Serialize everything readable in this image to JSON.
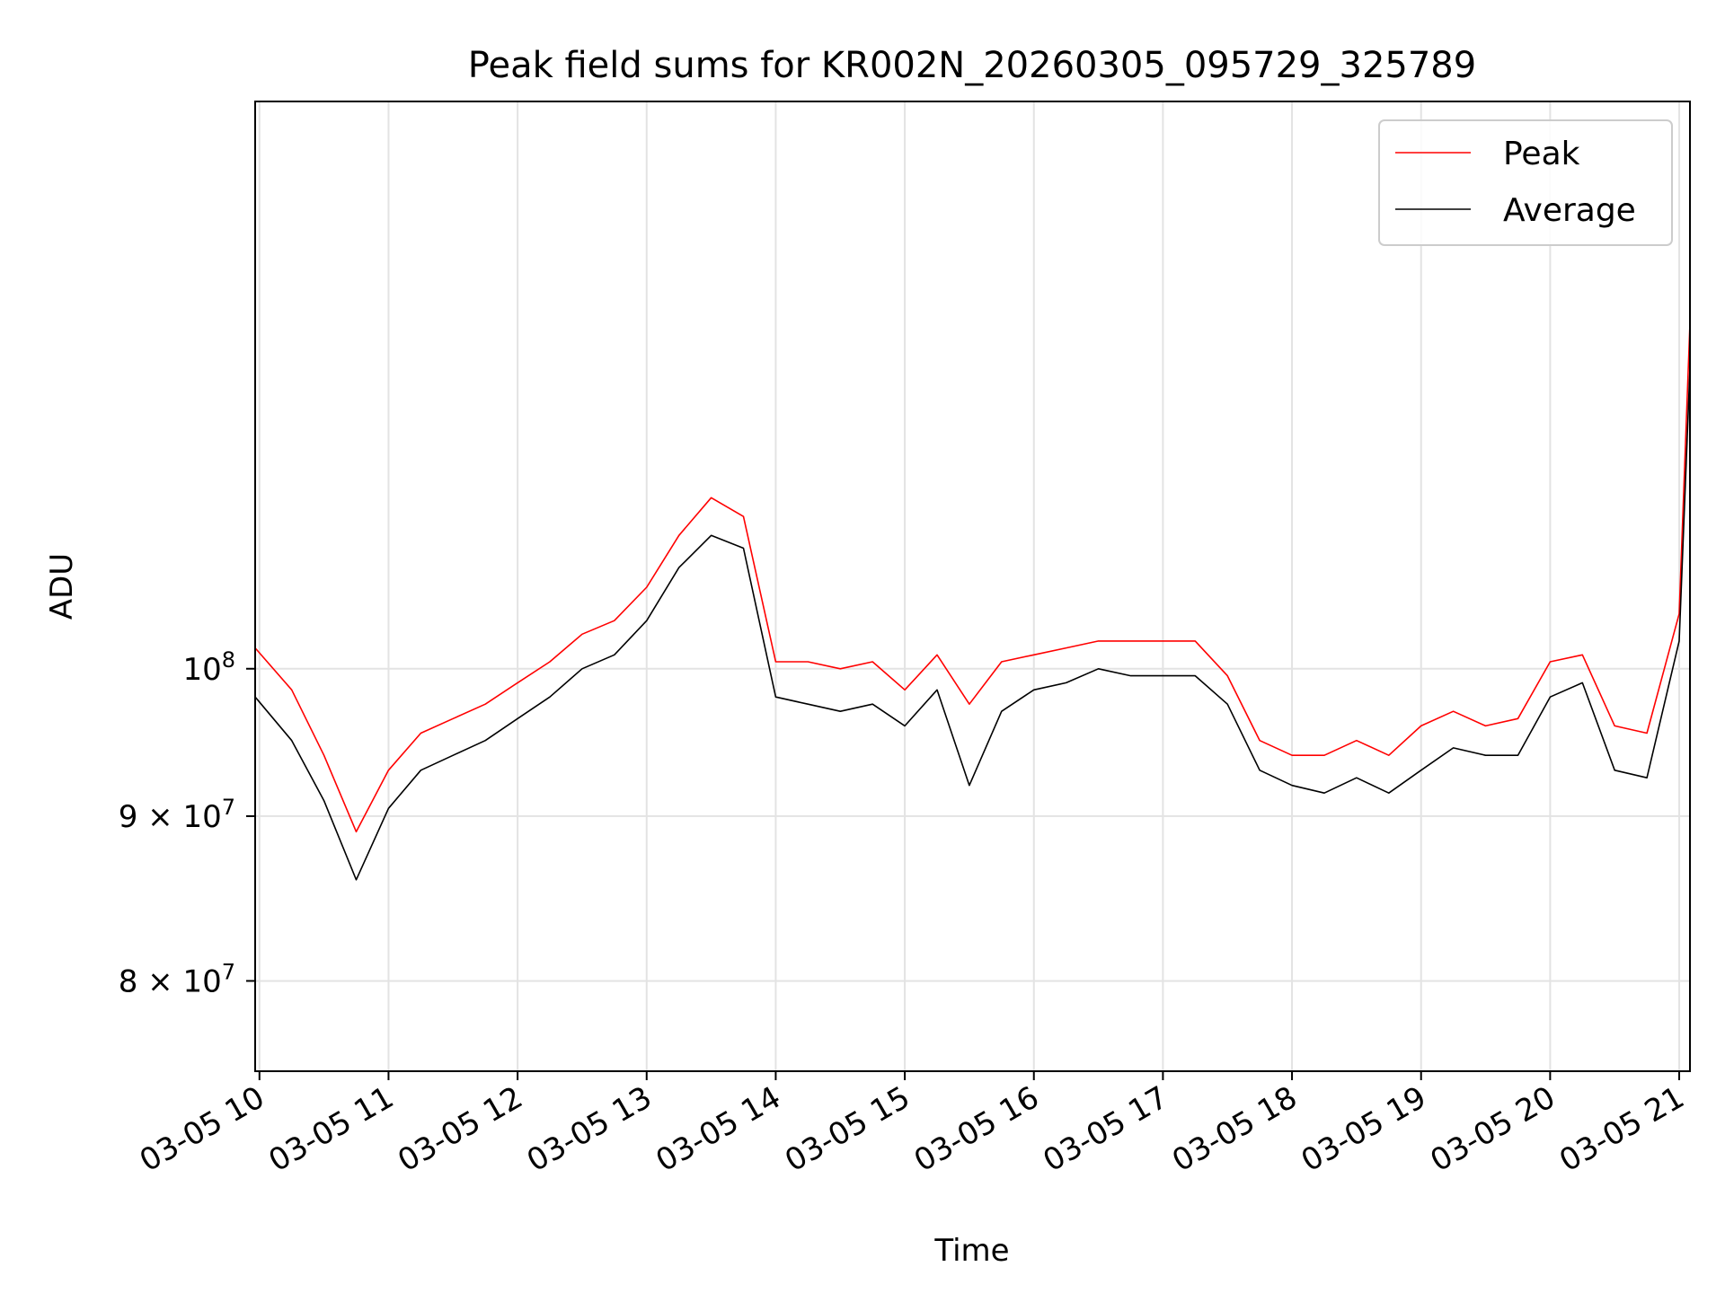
{
  "chart_data": {
    "type": "line",
    "title": "Peak field sums for KR002N_20260305_095729_325789",
    "xlabel": "Time",
    "ylabel": "ADU",
    "y_scale": "log",
    "ylim": [
      75000000,
      150000000
    ],
    "xlim": [
      "2026-03-05 09:58",
      "2026-03-05 21:05"
    ],
    "grid": true,
    "legend_position": "top-right",
    "x_tick_labels": [
      "03-05 10",
      "03-05 11",
      "03-05 12",
      "03-05 13",
      "03-05 14",
      "03-05 15",
      "03-05 16",
      "03-05 17",
      "03-05 18",
      "03-05 19",
      "03-05 20",
      "03-05 21"
    ],
    "y_ticks": [
      {
        "value": 80000000,
        "mantissa": "8",
        "exponent": "7"
      },
      {
        "value": 90000000,
        "mantissa": "9",
        "exponent": "7"
      },
      {
        "value": 100000000,
        "mantissa": "",
        "exponent": "8"
      }
    ],
    "x": [
      "2026-03-05 09:58",
      "2026-03-05 10:15",
      "2026-03-05 10:30",
      "2026-03-05 10:45",
      "2026-03-05 11:00",
      "2026-03-05 11:15",
      "2026-03-05 11:30",
      "2026-03-05 11:45",
      "2026-03-05 12:00",
      "2026-03-05 12:15",
      "2026-03-05 12:30",
      "2026-03-05 12:45",
      "2026-03-05 13:00",
      "2026-03-05 13:15",
      "2026-03-05 13:30",
      "2026-03-05 13:45",
      "2026-03-05 14:00",
      "2026-03-05 14:15",
      "2026-03-05 14:30",
      "2026-03-05 14:45",
      "2026-03-05 15:00",
      "2026-03-05 15:15",
      "2026-03-05 15:30",
      "2026-03-05 15:45",
      "2026-03-05 16:00",
      "2026-03-05 16:15",
      "2026-03-05 16:30",
      "2026-03-05 16:45",
      "2026-03-05 17:00",
      "2026-03-05 17:15",
      "2026-03-05 17:30",
      "2026-03-05 17:45",
      "2026-03-05 18:00",
      "2026-03-05 18:15",
      "2026-03-05 18:30",
      "2026-03-05 18:45",
      "2026-03-05 19:00",
      "2026-03-05 19:15",
      "2026-03-05 19:30",
      "2026-03-05 19:45",
      "2026-03-05 20:00",
      "2026-03-05 20:15",
      "2026-03-05 20:30",
      "2026-03-05 20:45",
      "2026-03-05 21:00",
      "2026-03-05 21:05"
    ],
    "series": [
      {
        "name": "Peak",
        "color": "#ff0000",
        "values": [
          101500000,
          98500000,
          94000000,
          89000000,
          93000000,
          95500000,
          96500000,
          97500000,
          99000000,
          100500000,
          102500000,
          103500000,
          106000000,
          110000000,
          113000000,
          111500000,
          100500000,
          100500000,
          100000000,
          100500000,
          98500000,
          101000000,
          97500000,
          100500000,
          101000000,
          101500000,
          102000000,
          102000000,
          102000000,
          102000000,
          99500000,
          95000000,
          94000000,
          94000000,
          95000000,
          94000000,
          96000000,
          97000000,
          96000000,
          96500000,
          100500000,
          101000000,
          96000000,
          95500000,
          104000000,
          128000000
        ]
      },
      {
        "name": "Average",
        "color": "#000000",
        "values": [
          98000000,
          95000000,
          91000000,
          86000000,
          90500000,
          93000000,
          94000000,
          95000000,
          96500000,
          98000000,
          100000000,
          101000000,
          103500000,
          107500000,
          110000000,
          109000000,
          98000000,
          97500000,
          97000000,
          97500000,
          96000000,
          98500000,
          92000000,
          97000000,
          98500000,
          99000000,
          100000000,
          99500000,
          99500000,
          99500000,
          97500000,
          93000000,
          92000000,
          91500000,
          92500000,
          91500000,
          93000000,
          94500000,
          94000000,
          94000000,
          98000000,
          99000000,
          93000000,
          92500000,
          102000000,
          124000000
        ]
      }
    ]
  }
}
